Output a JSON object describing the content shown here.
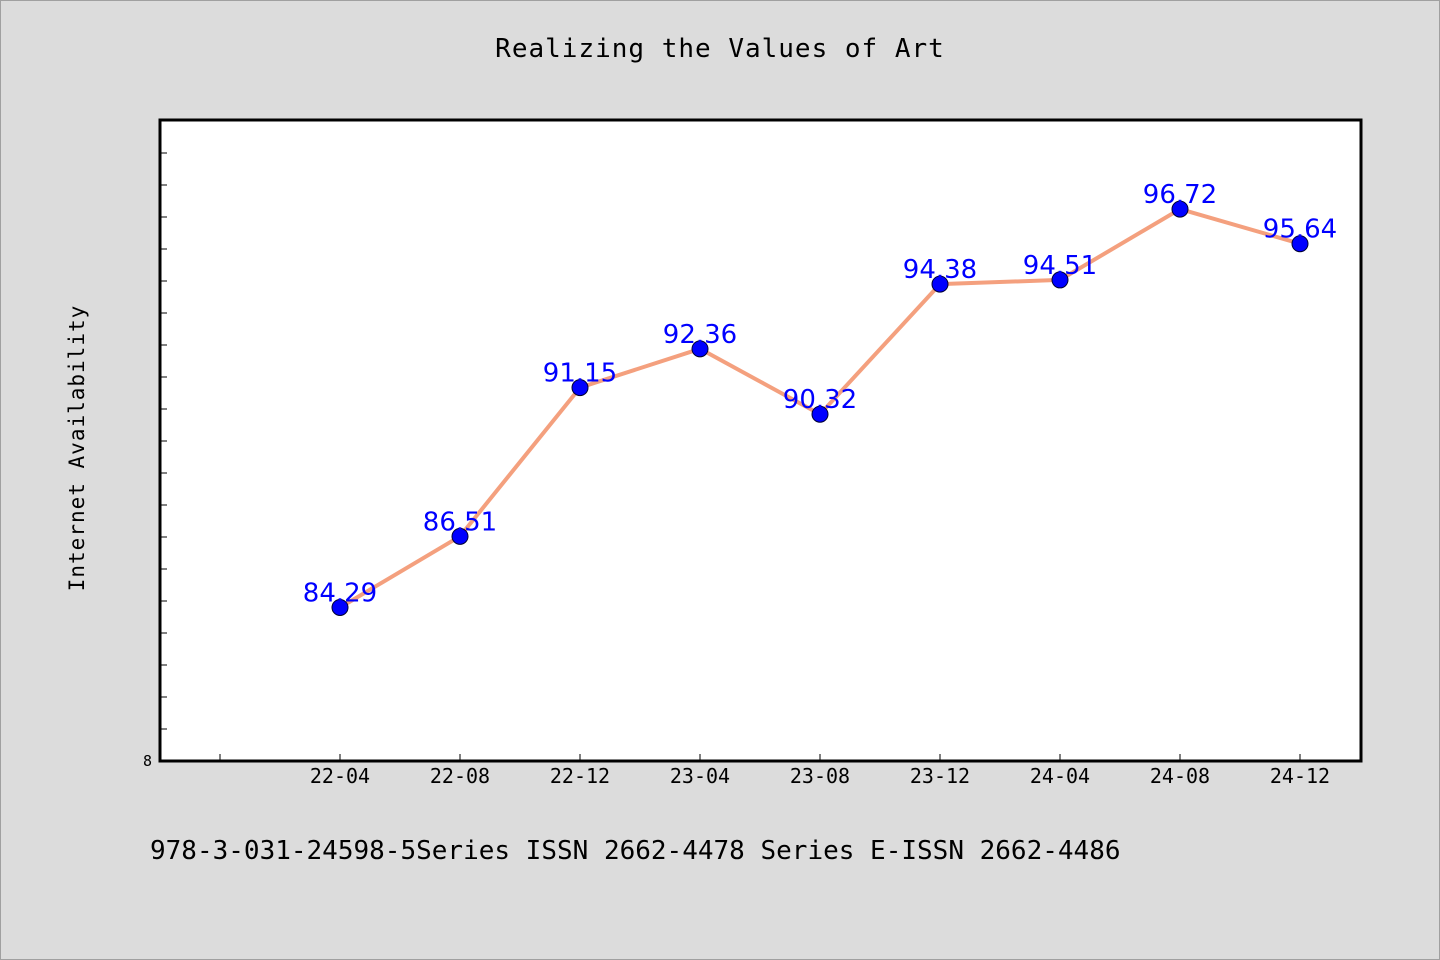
{
  "chart_data": {
    "type": "line",
    "title": "Realizing the Values of Art",
    "ylabel": "Internet Availability",
    "xlabel": "",
    "categories": [
      "22-04",
      "22-08",
      "22-12",
      "23-04",
      "23-08",
      "23-12",
      "24-04",
      "24-08",
      "24-12"
    ],
    "series": [
      {
        "values": [
          84.29,
          86.51,
          91.15,
          92.36,
          90.32,
          94.38,
          94.51,
          96.72,
          95.64
        ]
      }
    ],
    "ylim": [
      79.5,
      99.5
    ],
    "y_tick_labels": [
      "8"
    ],
    "data_labels": true,
    "grid": false,
    "colors": {
      "line": "#f4a07e",
      "marker": "#0000ff",
      "label": "#0000ff"
    }
  },
  "footer": "978-3-031-24598-5Series ISSN 2662-4478 Series E-ISSN 2662-4486"
}
